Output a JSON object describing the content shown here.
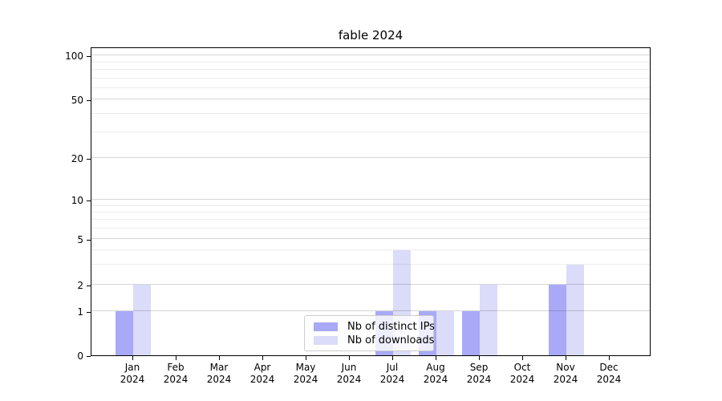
{
  "chart_data": {
    "type": "bar",
    "title": "fable 2024",
    "categories": [
      "Jan 2024",
      "Feb 2024",
      "Mar 2024",
      "Apr 2024",
      "May 2024",
      "Jun 2024",
      "Jul 2024",
      "Aug 2024",
      "Sep 2024",
      "Oct 2024",
      "Nov 2024",
      "Dec 2024"
    ],
    "series": [
      {
        "name": "Nb of distinct IPs",
        "color": "#a9a9f7",
        "values": [
          1,
          0,
          0,
          0,
          0,
          0,
          1,
          1,
          1,
          0,
          2,
          0
        ]
      },
      {
        "name": "Nb of downloads",
        "color": "#dbdbfa",
        "values": [
          2,
          0,
          0,
          0,
          0,
          0,
          4,
          1,
          2,
          0,
          3,
          0
        ]
      }
    ],
    "y_axis": {
      "scale": "symlog",
      "ticks": [
        0,
        1,
        2,
        5,
        10,
        20,
        50,
        100
      ],
      "minor_ticks": [
        3,
        4,
        6,
        7,
        8,
        9,
        30,
        40,
        60,
        70,
        80,
        90
      ]
    },
    "grid": true,
    "legend_position": "lower center"
  }
}
